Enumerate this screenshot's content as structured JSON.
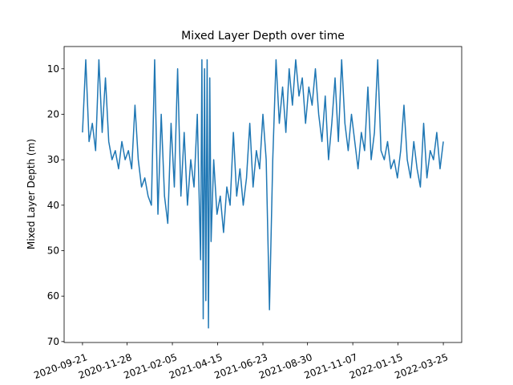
{
  "chart_data": {
    "type": "line",
    "title": "Mixed Layer Depth over time",
    "y_label": "Mixed Layer Depth (m)",
    "x": [
      "2020-09-21",
      "2020-09-26",
      "2020-10-01",
      "2020-10-06",
      "2020-10-11",
      "2020-10-16",
      "2020-10-21",
      "2020-10-26",
      "2020-10-31",
      "2020-11-05",
      "2020-11-10",
      "2020-11-15",
      "2020-11-20",
      "2020-11-25",
      "2020-11-30",
      "2020-12-05",
      "2020-12-10",
      "2020-12-15",
      "2020-12-20",
      "2020-12-25",
      "2020-12-30",
      "2021-01-04",
      "2021-01-09",
      "2021-01-14",
      "2021-01-19",
      "2021-01-24",
      "2021-01-29",
      "2021-02-03",
      "2021-02-08",
      "2021-02-13",
      "2021-02-18",
      "2021-02-23",
      "2021-02-28",
      "2021-03-05",
      "2021-03-10",
      "2021-03-15",
      "2021-03-20",
      "2021-03-22",
      "2021-03-24",
      "2021-03-26",
      "2021-03-28",
      "2021-03-30",
      "2021-04-01",
      "2021-04-03",
      "2021-04-05",
      "2021-04-09",
      "2021-04-14",
      "2021-04-19",
      "2021-04-24",
      "2021-04-29",
      "2021-05-04",
      "2021-05-09",
      "2021-05-14",
      "2021-05-19",
      "2021-05-24",
      "2021-05-29",
      "2021-06-03",
      "2021-06-08",
      "2021-06-13",
      "2021-06-18",
      "2021-06-23",
      "2021-06-28",
      "2021-07-03",
      "2021-07-08",
      "2021-07-13",
      "2021-07-18",
      "2021-07-23",
      "2021-07-28",
      "2021-08-02",
      "2021-08-07",
      "2021-08-12",
      "2021-08-17",
      "2021-08-22",
      "2021-08-27",
      "2021-09-01",
      "2021-09-06",
      "2021-09-11",
      "2021-09-16",
      "2021-09-21",
      "2021-09-26",
      "2021-10-01",
      "2021-10-06",
      "2021-10-11",
      "2021-10-16",
      "2021-10-21",
      "2021-10-26",
      "2021-10-31",
      "2021-11-05",
      "2021-11-10",
      "2021-11-15",
      "2021-11-20",
      "2021-11-25",
      "2021-11-30",
      "2021-12-05",
      "2021-12-10",
      "2021-12-15",
      "2021-12-20",
      "2021-12-25",
      "2021-12-30",
      "2022-01-04",
      "2022-01-09",
      "2022-01-14",
      "2022-01-19",
      "2022-01-24",
      "2022-01-29",
      "2022-02-03",
      "2022-02-08",
      "2022-02-13",
      "2022-02-18",
      "2022-02-23",
      "2022-02-28",
      "2022-03-05",
      "2022-03-10",
      "2022-03-15",
      "2022-03-20",
      "2022-03-25"
    ],
    "series": [
      {
        "name": "Mixed Layer Depth",
        "color": "#1f77b4",
        "values": [
          24,
          8,
          26,
          22,
          28,
          8,
          24,
          12,
          26,
          30,
          28,
          32,
          26,
          30,
          28,
          32,
          18,
          30,
          36,
          34,
          38,
          40,
          8,
          42,
          20,
          38,
          44,
          22,
          36,
          10,
          38,
          24,
          40,
          30,
          36,
          20,
          52,
          8,
          65,
          10,
          61,
          8,
          67,
          12,
          48,
          30,
          42,
          38,
          46,
          36,
          40,
          24,
          38,
          32,
          40,
          34,
          22,
          36,
          28,
          32,
          20,
          30,
          63,
          30,
          8,
          22,
          14,
          24,
          10,
          18,
          8,
          16,
          12,
          22,
          14,
          18,
          10,
          20,
          26,
          16,
          30,
          22,
          12,
          26,
          8,
          22,
          28,
          20,
          26,
          32,
          24,
          28,
          14,
          30,
          24,
          8,
          28,
          30,
          26,
          32,
          30,
          34,
          28,
          18,
          30,
          34,
          26,
          32,
          36,
          22,
          34,
          28,
          30,
          24,
          32,
          26
        ]
      }
    ],
    "xlim": [
      "2020-08-24",
      "2022-04-22"
    ],
    "xticks": [
      "2020-09-21",
      "2020-11-28",
      "2021-02-05",
      "2021-04-15",
      "2021-06-23",
      "2021-08-30",
      "2021-11-07",
      "2022-01-15",
      "2022-03-25"
    ],
    "ylim": [
      70.2,
      5.1
    ],
    "yticks": [
      10,
      20,
      30,
      40,
      50,
      60,
      70
    ]
  }
}
